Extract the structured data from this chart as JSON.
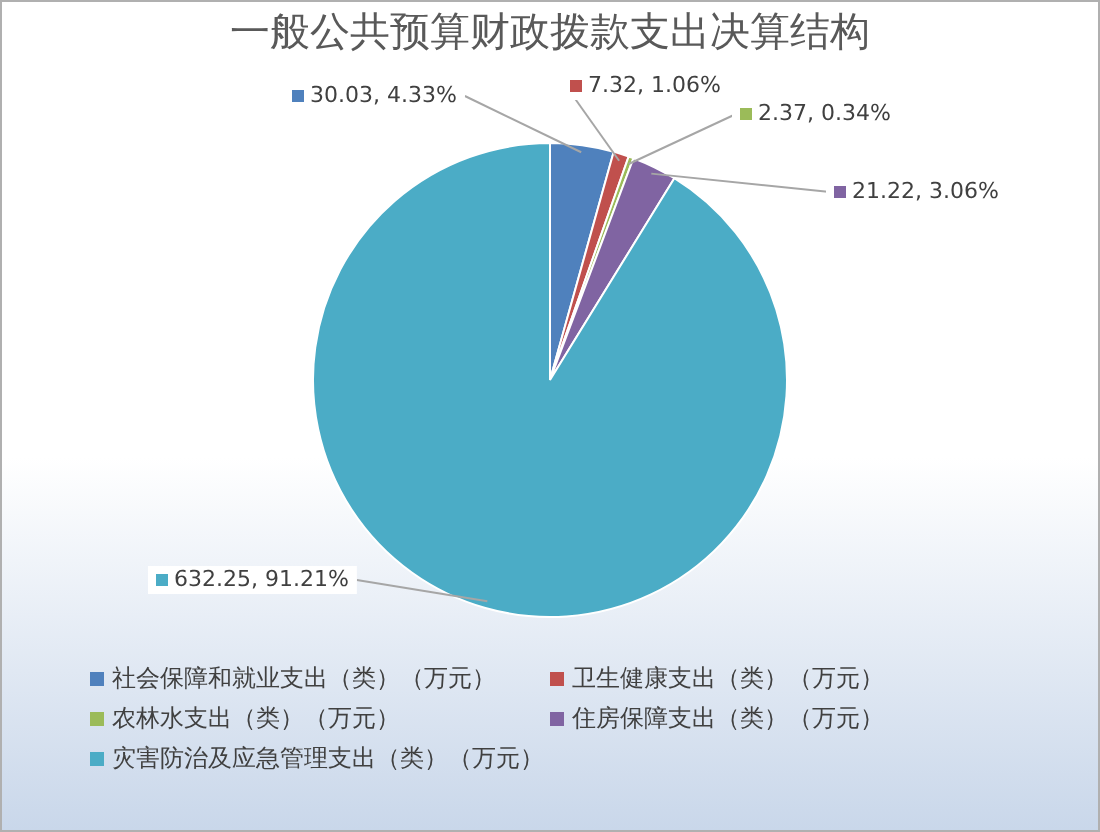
{
  "chart_data": {
    "type": "pie",
    "title": "一般公共预算财政拨款支出决算结构",
    "categories": [
      "社会保障和就业支出（类）（万元）",
      "卫生健康支出（类）（万元）",
      "农林水支出（类）（万元）",
      "住房保障支出（类）（万元）",
      "灾害防治及应急管理支出（类）（万元）"
    ],
    "values": [
      30.03,
      7.32,
      2.37,
      21.22,
      632.25
    ],
    "value_labels": [
      "30.03, 4.33%",
      "7.32, 1.06%",
      "2.37, 0.34%",
      "21.22, 3.06%",
      "632.25, 91.21%"
    ],
    "colors": [
      "#4f81bd",
      "#c0504d",
      "#9bbb59",
      "#8064a2",
      "#4bacc6"
    ],
    "legend": "bottom"
  }
}
